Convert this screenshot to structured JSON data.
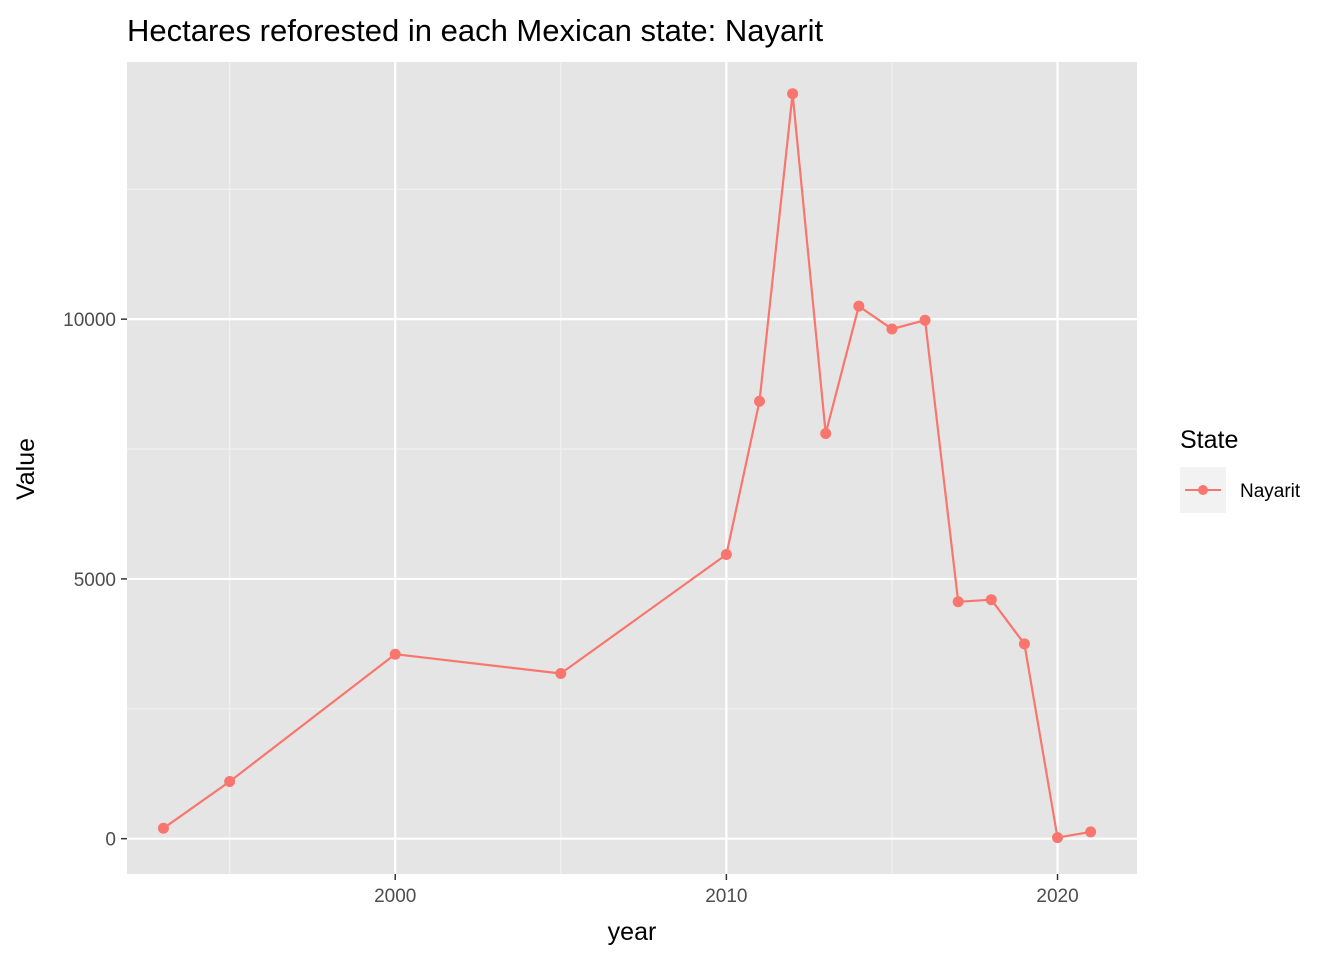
{
  "chart_data": {
    "type": "line",
    "title": "Hectares reforested in each Mexican state: Nayarit",
    "xlabel": "year",
    "ylabel": "Value",
    "xlim": [
      1991.9,
      2022.4
    ],
    "ylim": [
      -680,
      14950
    ],
    "x_ticks": [
      2000,
      2010,
      2020
    ],
    "x_tick_labels": [
      "2000",
      "2010",
      "2020"
    ],
    "x_minor_ticks": [
      1995,
      2005,
      2015
    ],
    "y_ticks": [
      0,
      5000,
      10000
    ],
    "y_tick_labels": [
      "0",
      "5000",
      "10000"
    ],
    "y_minor_ticks": [
      2500,
      7500,
      12500
    ],
    "grid": true,
    "legend": {
      "title": "State",
      "position": "right"
    },
    "series": [
      {
        "name": "Nayarit",
        "color": "#F8766D",
        "x": [
          1993,
          1995,
          2000,
          2005,
          2010,
          2011,
          2012,
          2013,
          2014,
          2015,
          2016,
          2017,
          2018,
          2019,
          2020,
          2021
        ],
        "values": [
          200,
          1100,
          3550,
          3180,
          5470,
          8420,
          14340,
          7800,
          10250,
          9810,
          9980,
          4560,
          4600,
          3750,
          20,
          130
        ]
      }
    ]
  }
}
